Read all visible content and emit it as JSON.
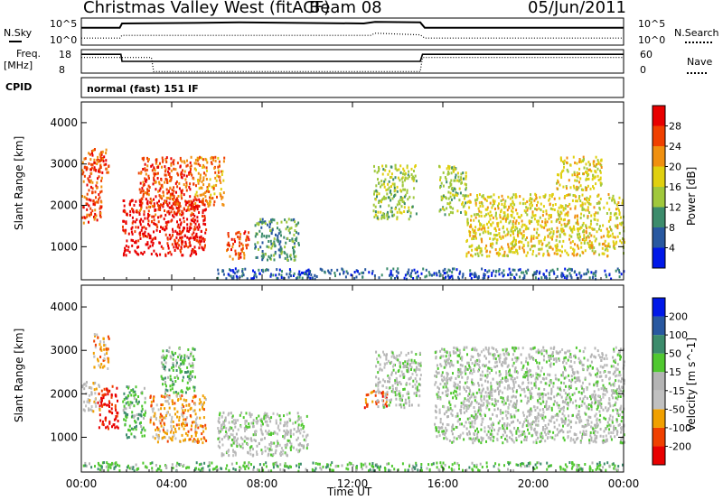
{
  "header": {
    "title": "Christmas Valley West (fitACF)",
    "beam": "Beam 08",
    "date": "05/Jun/2011"
  },
  "sky_panel": {
    "left_label": "N.Sky",
    "left_ticks": [
      "10^5",
      "10^0"
    ],
    "right_label": "N.Search",
    "right_ticks": [
      "10^5",
      "10^0"
    ]
  },
  "freq_panel": {
    "left_label_1": "Freq.",
    "left_label_2": "[MHz]",
    "left_ticks": [
      "18",
      "8"
    ],
    "right_label": "Nave",
    "right_ticks": [
      "60",
      "0"
    ]
  },
  "cpid": {
    "label": "CPID",
    "value": "normal (fast) 151 IF"
  },
  "colors": {
    "power": [
      "#0018e8",
      "#2858a0",
      "#3c8c6c",
      "#a0c83c",
      "#e0d010",
      "#f09010",
      "#f04000",
      "#e80000"
    ],
    "velocity": [
      "#e80000",
      "#f04000",
      "#f0a000",
      "#c0c0c0",
      "#b4b4b4",
      "#50c830",
      "#3c8c6c",
      "#2858a0",
      "#0018e8"
    ],
    "ground": "#a0a0a0"
  },
  "chart_data": [
    {
      "type": "heatmap",
      "name": "power",
      "ylabel": "Slant Range [km]",
      "colorbar_label": "Power [dB]",
      "colorbar_ticks": [
        "28",
        "24",
        "20",
        "16",
        "12",
        "8",
        "4"
      ],
      "xlim": [
        "00:00",
        "24:00"
      ],
      "ylim": [
        200,
        4500
      ],
      "yticks": [
        1000,
        2000,
        3000,
        4000
      ],
      "xticks": [
        "00:00",
        "04:00",
        "08:00",
        "12:00",
        "16:00",
        "20:00",
        "00:00"
      ],
      "echo_regions": [
        {
          "t0": 0.0,
          "t1": 0.9,
          "r0": 1600,
          "r1": 3300,
          "level": 6
        },
        {
          "t0": 0.4,
          "t1": 1.2,
          "r0": 2800,
          "r1": 3400,
          "level": 6
        },
        {
          "t0": 1.8,
          "t1": 5.5,
          "r0": 800,
          "r1": 2200,
          "level": 7
        },
        {
          "t0": 2.5,
          "t1": 5.0,
          "r0": 1800,
          "r1": 3200,
          "level": 6
        },
        {
          "t0": 5.0,
          "t1": 6.3,
          "r0": 2000,
          "r1": 3200,
          "level": 5
        },
        {
          "t0": 6.4,
          "t1": 7.4,
          "r0": 700,
          "r1": 1400,
          "level": 6
        },
        {
          "t0": 7.6,
          "t1": 9.6,
          "r0": 700,
          "r1": 1700,
          "level": 2
        },
        {
          "t0": 12.9,
          "t1": 14.8,
          "r0": 1700,
          "r1": 3000,
          "level": 3
        },
        {
          "t0": 15.8,
          "t1": 17.0,
          "r0": 1800,
          "r1": 3000,
          "level": 3
        },
        {
          "t0": 17.0,
          "t1": 24.0,
          "r0": 800,
          "r1": 2300,
          "level": 4
        },
        {
          "t0": 21.0,
          "t1": 23.0,
          "r0": 2400,
          "r1": 3200,
          "level": 4
        },
        {
          "t0": 6.0,
          "t1": 24.0,
          "r0": 250,
          "r1": 500,
          "level": 1
        }
      ]
    },
    {
      "type": "heatmap",
      "name": "velocity",
      "ylabel": "Slant Range [km]",
      "colorbar_label": "Velocity [m s^-1]",
      "colorbar_ticks": [
        "200",
        "100",
        "50",
        "15",
        "-15",
        "-50",
        "-100",
        "-200"
      ],
      "xlabel": "Time UT",
      "xlim": [
        "00:00",
        "24:00"
      ],
      "ylim": [
        200,
        4500
      ],
      "yticks": [
        1000,
        2000,
        3000,
        4000
      ],
      "xticks": [
        "00:00",
        "04:00",
        "08:00",
        "12:00",
        "16:00",
        "20:00",
        "00:00"
      ],
      "echo_regions": [
        {
          "t0": 0.0,
          "t1": 0.8,
          "r0": 1600,
          "r1": 2300,
          "level": 3
        },
        {
          "t0": 0.7,
          "t1": 1.6,
          "r0": 1200,
          "r1": 2200,
          "level": 0
        },
        {
          "t0": 0.5,
          "t1": 1.2,
          "r0": 2600,
          "r1": 3400,
          "level": 2
        },
        {
          "t0": 1.8,
          "t1": 2.8,
          "r0": 1000,
          "r1": 2200,
          "level": 5
        },
        {
          "t0": 3.0,
          "t1": 5.5,
          "r0": 900,
          "r1": 2000,
          "level": 2
        },
        {
          "t0": 3.5,
          "t1": 5.0,
          "r0": 2000,
          "r1": 3100,
          "level": 5
        },
        {
          "t0": 6.0,
          "t1": 10.0,
          "r0": 600,
          "r1": 1600,
          "level": 4
        },
        {
          "t0": 12.5,
          "t1": 13.5,
          "r0": 1700,
          "r1": 2100,
          "level": 1
        },
        {
          "t0": 13.0,
          "t1": 15.0,
          "r0": 1700,
          "r1": 3000,
          "level": 4
        },
        {
          "t0": 15.6,
          "t1": 24.0,
          "r0": 900,
          "r1": 3100,
          "level": 4
        },
        {
          "t0": 0.0,
          "t1": 24.0,
          "r0": 250,
          "r1": 450,
          "level": 5
        }
      ]
    },
    {
      "type": "line",
      "name": "sky-search-noise",
      "series": [
        {
          "x": [
            0,
            1.7,
            1.8,
            5,
            7,
            12.5,
            13,
            15,
            15.2,
            20,
            24
          ],
          "values": [
            3.2,
            3.2,
            4.0,
            4.1,
            4.2,
            4.0,
            4.3,
            4.2,
            3.2,
            3.2,
            3.2
          ]
        },
        {
          "x": [
            0,
            1.7,
            1.8,
            12.8,
            13,
            15,
            15.2,
            24
          ],
          "values": [
            1.3,
            1.3,
            1.8,
            1.8,
            2.2,
            1.9,
            1.3,
            1.3
          ]
        }
      ]
    },
    {
      "type": "line",
      "name": "frequency-nave",
      "series": [
        {
          "x": [
            0,
            1.75,
            1.8,
            3.1,
            3.2,
            15.0,
            15.1,
            24
          ],
          "values": [
            16,
            16,
            13,
            13,
            13,
            13,
            16,
            16
          ]
        },
        {
          "x": [
            0,
            3.1,
            3.2,
            15.0,
            15.1,
            24
          ],
          "values": [
            40,
            40,
            4,
            4,
            40,
            40
          ]
        }
      ]
    }
  ]
}
